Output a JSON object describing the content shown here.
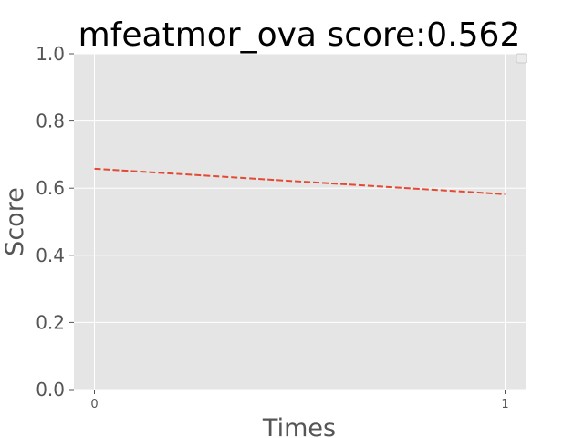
{
  "chart_data": {
    "type": "line",
    "title": "mfeatmor_ova score:0.562",
    "xlabel": "Times",
    "ylabel": "Score",
    "x": [
      0,
      1
    ],
    "x_tick_labels": [
      "0",
      "1"
    ],
    "y_tick_labels": [
      "0.0",
      "0.2",
      "0.4",
      "0.6",
      "0.8",
      "1.0"
    ],
    "xlim": [
      -0.05,
      1.05
    ],
    "ylim": [
      0,
      1
    ],
    "grid": true,
    "legend": "top-right",
    "series": [
      {
        "values": [
          0.658,
          0.582
        ],
        "color": "#E24A33",
        "style": "dashed"
      }
    ],
    "colors": {
      "plot_background": "#E5E5E5",
      "grid": "#FFFFFF",
      "text": "#555555"
    }
  }
}
